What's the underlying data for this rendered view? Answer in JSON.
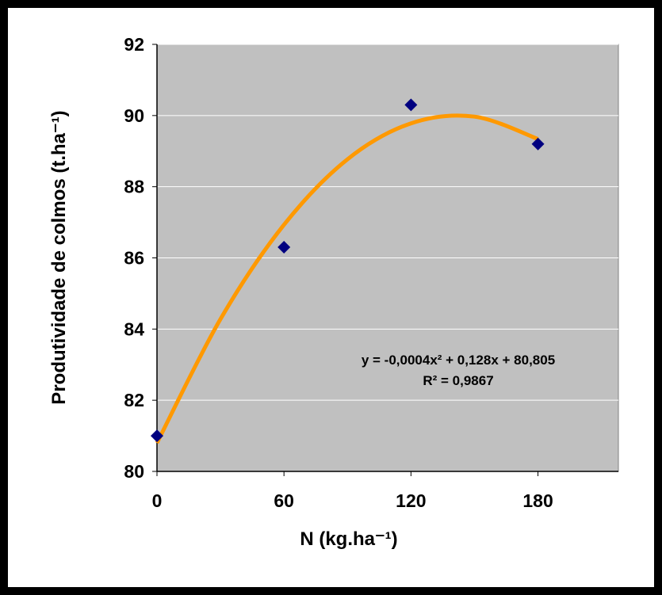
{
  "chart_data": {
    "type": "scatter",
    "x_label": "N (kg.ha⁻¹)",
    "y_label": "Produtividade de colmos (t.ha⁻¹)",
    "x": [
      0,
      60,
      120,
      180
    ],
    "series": [
      {
        "color": "#000080",
        "values": [
          81.0,
          86.3,
          90.3,
          89.2
        ]
      }
    ],
    "trendline": {
      "color": "#ff9900",
      "x": [
        0,
        30,
        60,
        90,
        120,
        150,
        180
      ],
      "values": [
        80.8,
        84.28,
        86.93,
        88.77,
        89.78,
        89.97,
        89.34
      ],
      "equation": "y = -0,0004x² + 0,128x + 80,805",
      "r2": "R² = 0,9867"
    },
    "xlim": [
      0,
      218
    ],
    "xticks": [
      0,
      60,
      120,
      180
    ],
    "ylim": [
      80,
      92
    ],
    "yticks": [
      80,
      82,
      84,
      86,
      88,
      90,
      92
    ],
    "grid": true,
    "plot_background": "#c0c0c0"
  }
}
